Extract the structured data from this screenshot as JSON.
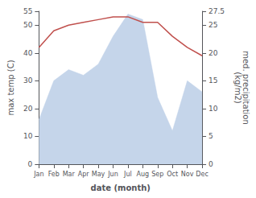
{
  "chart_data": {
    "type": "line",
    "xlabel": "date (month)",
    "ylabel": "max temp (C)",
    "y2label": "med. precipitation\n(kg/m2)",
    "categories": [
      "Jan",
      "Feb",
      "Mar",
      "Apr",
      "May",
      "Jun",
      "Jul",
      "Aug",
      "Sep",
      "Oct",
      "Nov",
      "Dec"
    ],
    "series": [
      {
        "type": "line",
        "color": "#c0504d",
        "values": [
          42,
          48,
          50,
          51,
          52,
          53,
          53,
          51,
          51,
          46,
          42,
          39
        ]
      },
      {
        "type": "area",
        "color": "#c5d5ea",
        "axis": "y2",
        "values": [
          8,
          15,
          17,
          16,
          18,
          23,
          27,
          26,
          12,
          6,
          15,
          13
        ]
      }
    ],
    "ylim": [
      0,
      55
    ],
    "yticks": [
      0,
      10,
      20,
      30,
      40,
      50
    ],
    "y2lim": [
      0,
      27.5
    ],
    "y2ticks": [
      0,
      5,
      10,
      15,
      20,
      25
    ],
    "grid": false
  }
}
